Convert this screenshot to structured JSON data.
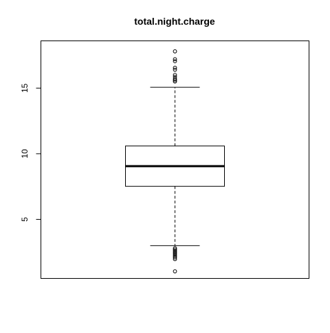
{
  "chart_data": {
    "type": "boxplot",
    "title": "total.night.charge",
    "xlabel": "",
    "ylabel": "",
    "ylim": [
      0.5,
      18.6
    ],
    "yticks": [
      5,
      10,
      15
    ],
    "ytick_labels": [
      "5",
      "10",
      "15"
    ],
    "grid": false,
    "box": {
      "lower_whisker": 3.0,
      "q1": 7.52,
      "median": 9.05,
      "q3": 10.59,
      "upper_whisker": 15.06
    },
    "outliers_high": [
      15.5,
      15.6,
      15.7,
      15.85,
      16.0,
      16.4,
      16.55,
      17.05,
      17.2,
      17.8
    ],
    "outliers_low": [
      1.04,
      1.97,
      2.1,
      2.2,
      2.3,
      2.4,
      2.5,
      2.6,
      2.7,
      2.8
    ]
  }
}
